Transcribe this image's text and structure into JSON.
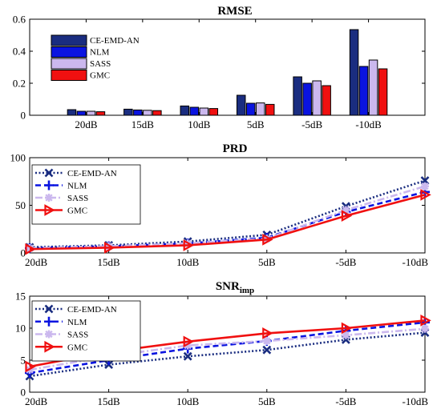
{
  "chart_data": [
    {
      "type": "bar",
      "title": "RMSE",
      "categories": [
        "20dB",
        "15dB",
        "10dB",
        "5dB",
        "-5dB",
        "-10dB"
      ],
      "ylim": [
        0,
        0.6
      ],
      "yticks": [
        "0",
        "0.2",
        "0.4",
        "0.6"
      ],
      "legend_position": "top-left",
      "series": [
        {
          "name": "CE-EMD-AN",
          "color": "#1a2d80",
          "values": [
            0.035,
            0.038,
            0.058,
            0.125,
            0.24,
            0.535
          ]
        },
        {
          "name": "NLM",
          "color": "#0a14e0",
          "values": [
            0.025,
            0.033,
            0.05,
            0.075,
            0.2,
            0.305
          ]
        },
        {
          "name": "SASS",
          "color": "#cbb8ee",
          "values": [
            0.025,
            0.031,
            0.045,
            0.077,
            0.215,
            0.345
          ]
        },
        {
          "name": "GMC",
          "color": "#f01010",
          "values": [
            0.022,
            0.029,
            0.042,
            0.068,
            0.185,
            0.29
          ]
        }
      ]
    },
    {
      "type": "line",
      "title": "PRD",
      "categories": [
        "20dB",
        "15dB",
        "10dB",
        "5dB",
        "-5dB",
        "-10dB"
      ],
      "ylim": [
        0,
        100
      ],
      "yticks": [
        "0",
        "50",
        "100"
      ],
      "legend_position": "top-left",
      "series": [
        {
          "name": "CE-EMD-AN",
          "color": "#1a2d80",
          "dash": "2,2.5",
          "marker": "x",
          "values": [
            6,
            8,
            12,
            19,
            49,
            76
          ]
        },
        {
          "name": "NLM",
          "color": "#0a14e0",
          "dash": "7,4",
          "marker": "plus",
          "values": [
            5,
            7,
            10,
            16,
            43,
            64
          ]
        },
        {
          "name": "SASS",
          "color": "#cbb8ee",
          "dash": "9,3,2,3",
          "marker": "star",
          "values": [
            5,
            7,
            10,
            15,
            45,
            70
          ]
        },
        {
          "name": "GMC",
          "color": "#f01010",
          "dash": "",
          "marker": "triangle-right",
          "values": [
            4,
            5.5,
            8,
            14,
            39,
            61
          ]
        }
      ]
    },
    {
      "type": "line",
      "title": "SNR",
      "title_subscript": "imp",
      "categories": [
        "20dB",
        "15dB",
        "10dB",
        "5dB",
        "-5dB",
        "-10dB"
      ],
      "ylim": [
        0,
        15
      ],
      "yticks": [
        "0",
        "5",
        "10",
        "15"
      ],
      "legend_position": "top-left",
      "series": [
        {
          "name": "CE-EMD-AN",
          "color": "#1a2d80",
          "dash": "2,2.5",
          "marker": "x",
          "values": [
            2.5,
            4.3,
            5.6,
            6.6,
            8.2,
            9.3
          ]
        },
        {
          "name": "NLM",
          "color": "#0a14e0",
          "dash": "7,4",
          "marker": "plus",
          "values": [
            3.0,
            5.0,
            6.8,
            8.0,
            9.6,
            10.9
          ]
        },
        {
          "name": "SASS",
          "color": "#cbb8ee",
          "dash": "9,3,2,3",
          "marker": "star",
          "values": [
            3.5,
            5.6,
            7.3,
            8.0,
            8.9,
            9.9
          ]
        },
        {
          "name": "GMC",
          "color": "#f01010",
          "dash": "",
          "marker": "triangle-right",
          "values": [
            4.0,
            6.3,
            7.9,
            9.2,
            10.0,
            11.2
          ]
        }
      ]
    }
  ]
}
